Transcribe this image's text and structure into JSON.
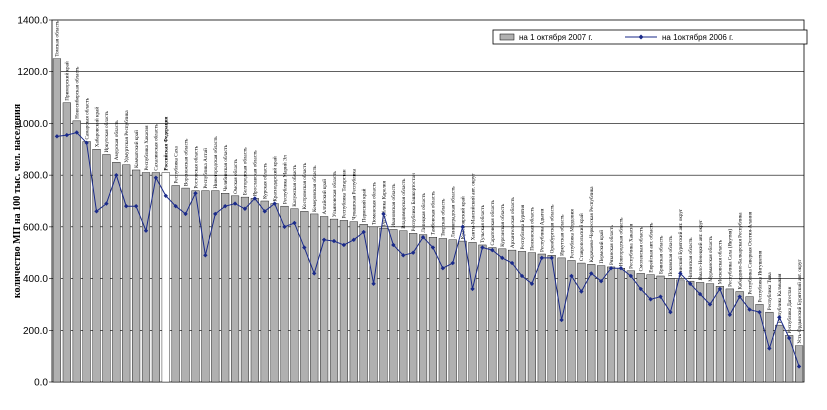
{
  "chart_data": {
    "type": "bar",
    "title": "",
    "xlabel": "",
    "ylabel": "количество МП на 100 тыс. чел. населения",
    "ylim": [
      0,
      1400
    ],
    "y_ticks": [
      "0.0",
      "200.0",
      "400.0",
      "600.0",
      "800.0",
      "1000.0",
      "1200.0",
      "1400.0"
    ],
    "grid": true,
    "legend_position": "top-right",
    "highlight_category": "Российская Федерация",
    "categories": [
      "Томская область",
      "Приморский край",
      "Новосибирская область",
      "Самарская область",
      "Хабаровский край",
      "Иркутская область",
      "Амурская область",
      "Удмуртская Республика",
      "Камчатский край",
      "Республика Хакасия",
      "Сахалинская область",
      "Российская Федерация",
      "Республика Саха",
      "Воронежская область",
      "Ростовская область",
      "Республика Алтай",
      "Нижегородская область",
      "Челябинская область",
      "Омская область",
      "Белгородская область",
      "Ярославская область",
      "Курская область",
      "Краснодарский край",
      "Республика Марий Эл",
      "Калужская область",
      "Костромская область",
      "Кемеровская область",
      "Алтайский край",
      "Ульяновская область",
      "Республика Татарстан",
      "Чувашская Республика",
      "Пермский край",
      "Тюменская область",
      "Республика Карелия",
      "Ивановская область",
      "Владимирская область",
      "Республика Башкортостан",
      "Липецкая область",
      "Тамбовская область",
      "Тверская область",
      "Ленинградская область",
      "Красноярский край",
      "Ханты-Мансийский авт. округ",
      "Тульская область",
      "Саратовская область",
      "Курганская область",
      "Архангельская область",
      "Республика Бурятия",
      "Пензенская область",
      "Республика Адыгея",
      "Оренбургская область",
      "Иркутская область",
      "Республика Мордовия",
      "Ставропольский край",
      "Карачаево-Черкесская Республика",
      "Пермский край",
      "Рязанская область",
      "Новгородская область",
      "Республика Хакасия",
      "Смоленская область",
      "Еврейская авт. область",
      "Брянская область",
      "Псковская область",
      "Агинский Бурятский авт. округ",
      "Читинская область",
      "Ямало-Ненецкий авт. округ",
      "Мурманская область",
      "Московская область",
      "Республика Саха (Якутия)",
      "Кабардино-Балкарская Республика",
      "Республика Северная Осетия-Алания",
      "Республика Ингушетия",
      "Республика Тыва",
      "Республика Калмыкия",
      "Республика Дагестан",
      "Усть-Ордынский Бурятский авт. округ"
    ],
    "series": [
      {
        "name": "на 1 октября 2007 г.",
        "type": "bar",
        "values": [
          1250,
          1080,
          1010,
          930,
          900,
          880,
          850,
          840,
          820,
          810,
          810,
          810,
          760,
          750,
          740,
          740,
          740,
          730,
          720,
          715,
          710,
          700,
          690,
          680,
          670,
          660,
          650,
          640,
          630,
          625,
          620,
          610,
          600,
          595,
          590,
          585,
          575,
          570,
          560,
          555,
          550,
          545,
          540,
          530,
          520,
          515,
          510,
          505,
          500,
          495,
          490,
          480,
          470,
          460,
          455,
          450,
          445,
          440,
          430,
          420,
          415,
          410,
          400,
          395,
          390,
          385,
          380,
          370,
          360,
          350,
          330,
          300,
          270,
          220,
          180,
          140
        ]
      },
      {
        "name": "на 1октября 2006 г.",
        "type": "line",
        "values": [
          950,
          955,
          965,
          925,
          660,
          690,
          800,
          680,
          680,
          585,
          790,
          720,
          680,
          650,
          730,
          490,
          650,
          680,
          690,
          670,
          710,
          660,
          690,
          600,
          615,
          520,
          420,
          550,
          545,
          530,
          550,
          580,
          380,
          650,
          530,
          490,
          500,
          560,
          520,
          440,
          460,
          600,
          360,
          520,
          510,
          480,
          460,
          410,
          380,
          480,
          480,
          240,
          410,
          350,
          420,
          390,
          440,
          440,
          410,
          360,
          320,
          330,
          270,
          420,
          380,
          340,
          300,
          360,
          260,
          330,
          280,
          270,
          130,
          250,
          170,
          60
        ]
      }
    ]
  }
}
